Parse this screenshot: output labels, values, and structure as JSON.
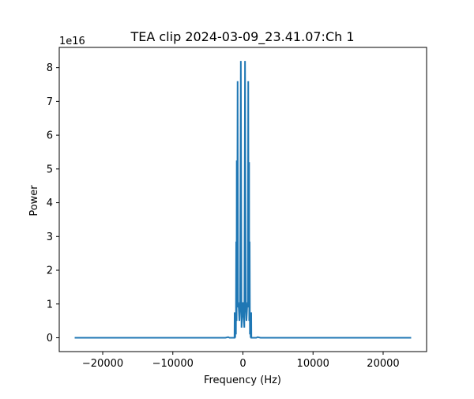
{
  "chart_data": {
    "type": "line",
    "title": "TEA clip 2024-03-09_23.41.07:Ch 1",
    "xlabel": "Frequency (Hz)",
    "ylabel": "Power",
    "y_offset_label": "1e16",
    "y_scale_factor": 1e+16,
    "xlim": [
      -26200,
      26200
    ],
    "ylim": [
      -4100000000000000.0,
      8.6e+16
    ],
    "x_ticks": [
      {
        "value": -20000,
        "label": "−20000"
      },
      {
        "value": -10000,
        "label": "−10000"
      },
      {
        "value": 0,
        "label": "0"
      },
      {
        "value": 10000,
        "label": "10000"
      },
      {
        "value": 20000,
        "label": "20000"
      }
    ],
    "y_ticks": [
      {
        "value": 0,
        "label": "0"
      },
      {
        "value": 1e+16,
        "label": "1"
      },
      {
        "value": 2e+16,
        "label": "2"
      },
      {
        "value": 3e+16,
        "label": "3"
      },
      {
        "value": 4e+16,
        "label": "4"
      },
      {
        "value": 5e+16,
        "label": "5"
      },
      {
        "value": 6e+16,
        "label": "6"
      },
      {
        "value": 7e+16,
        "label": "7"
      },
      {
        "value": 8e+16,
        "label": "8"
      }
    ],
    "grid": false,
    "series": [
      {
        "color": "#1f77b4",
        "points": [
          [
            -24000,
            0.0
          ],
          [
            -2500,
            0.0
          ],
          [
            -2100,
            200000000000000.0
          ],
          [
            -1900,
            0.0
          ],
          [
            -1200,
            0.0
          ],
          [
            -1180,
            7500000000000000.0
          ],
          [
            -1100,
            0.0
          ],
          [
            -1080,
            7000000000000000.0
          ],
          [
            -1000,
            1000000000000000.0
          ],
          [
            -960,
            2.85e+16
          ],
          [
            -900,
            5000000000000000.0
          ],
          [
            -880,
            5.25e+16
          ],
          [
            -820,
            1e+16
          ],
          [
            -760,
            7.6e+16
          ],
          [
            -700,
            9000000000000000.0
          ],
          [
            -640,
            1.05e+16
          ],
          [
            -500,
            5000000000000000.0
          ],
          [
            -400,
            9000000000000000.0
          ],
          [
            -300,
            8.2e+16
          ],
          [
            -200,
            3000000000000000.0
          ],
          [
            0,
            1.05e+16
          ],
          [
            200,
            3000000000000000.0
          ],
          [
            300,
            8.2e+16
          ],
          [
            400,
            9000000000000000.0
          ],
          [
            500,
            5000000000000000.0
          ],
          [
            640,
            1.05e+16
          ],
          [
            700,
            9000000000000000.0
          ],
          [
            760,
            7.6e+16
          ],
          [
            820,
            1e+16
          ],
          [
            880,
            5.2e+16
          ],
          [
            900,
            5000000000000000.0
          ],
          [
            960,
            2.85e+16
          ],
          [
            1000,
            1000000000000000.0
          ],
          [
            1080,
            7000000000000000.0
          ],
          [
            1100,
            0.0
          ],
          [
            1180,
            7500000000000000.0
          ],
          [
            1200,
            0.0
          ],
          [
            1900,
            0.0
          ],
          [
            2100,
            200000000000000.0
          ],
          [
            2500,
            0.0
          ],
          [
            24000,
            0.0
          ]
        ]
      }
    ]
  }
}
